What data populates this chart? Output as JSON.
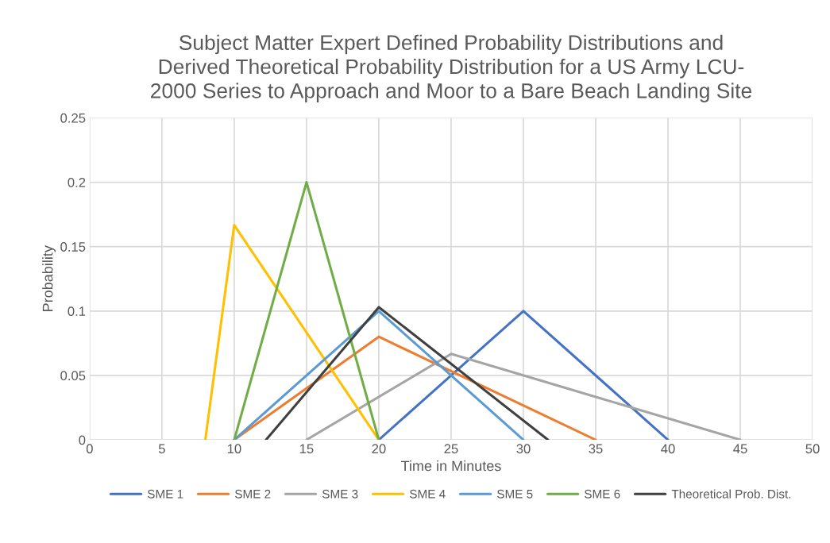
{
  "chart_data": {
    "type": "line",
    "title": "Subject Matter Expert Defined Probability Distributions and\nDerived Theoretical Probability Distribution for a US Army LCU-\n2000 Series to Approach and Moor to a Bare Beach Landing Site",
    "xlabel": "Time in Minutes",
    "ylabel": "Probability",
    "xlim": [
      0,
      50
    ],
    "xticks": [
      0,
      5,
      10,
      15,
      20,
      25,
      30,
      35,
      40,
      45,
      50
    ],
    "ylim": [
      0,
      0.25
    ],
    "yticks": [
      0,
      0.05,
      0.1,
      0.15,
      0.2,
      0.25
    ],
    "grid": true,
    "legend": "bottom",
    "series": [
      {
        "name": "SME 1",
        "color": "#4472c4",
        "x": [
          20,
          30,
          40
        ],
        "values": [
          0,
          0.1,
          0
        ]
      },
      {
        "name": "SME 2",
        "color": "#ed7d31",
        "x": [
          10,
          20,
          35
        ],
        "values": [
          0,
          0.08,
          0
        ]
      },
      {
        "name": "SME 3",
        "color": "#a5a5a5",
        "x": [
          15,
          25,
          45
        ],
        "values": [
          0,
          0.0667,
          0
        ]
      },
      {
        "name": "SME 4",
        "color": "#ffc000",
        "x": [
          8,
          10,
          20
        ],
        "values": [
          0,
          0.1667,
          0
        ]
      },
      {
        "name": "SME 5",
        "color": "#5b9bd5",
        "x": [
          10,
          20,
          30
        ],
        "values": [
          0,
          0.1,
          0
        ]
      },
      {
        "name": "SME 6",
        "color": "#70ad47",
        "x": [
          10,
          15,
          20
        ],
        "values": [
          0,
          0.2,
          0
        ]
      },
      {
        "name": "Theoretical Prob. Dist.",
        "color": "#404040",
        "x": [
          12.2,
          20,
          31.7
        ],
        "values": [
          0,
          0.103,
          0
        ]
      }
    ]
  }
}
